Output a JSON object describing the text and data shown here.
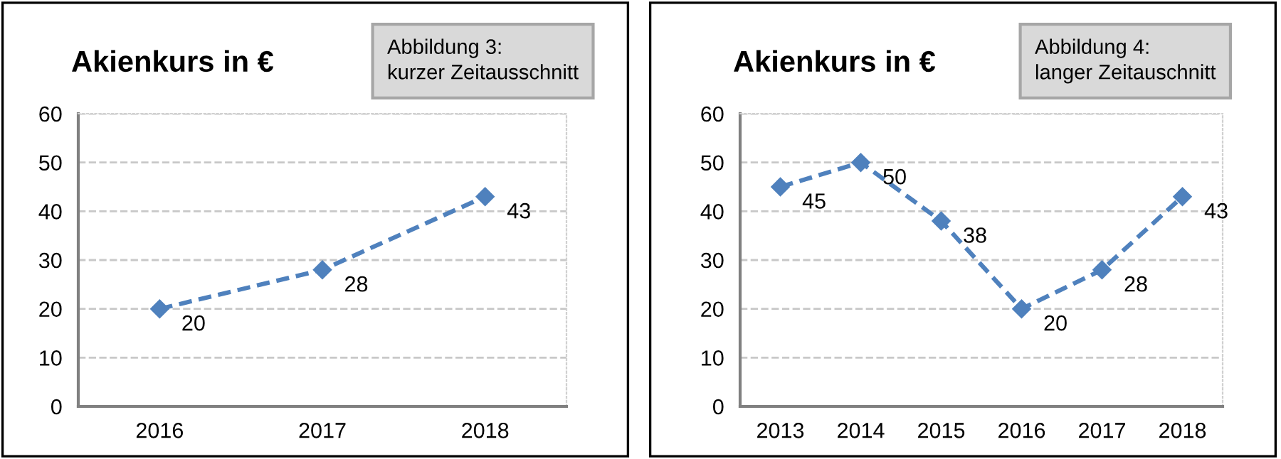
{
  "chart_data": [
    {
      "type": "line",
      "title": "Akienkurs in €",
      "annotations": [
        "Abbildung 3:\nkurzer Zeitausschnitt"
      ],
      "categories": [
        "2016",
        "2017",
        "2018"
      ],
      "series": [
        {
          "color": "#4f81bd",
          "values": [
            20,
            28,
            43
          ]
        }
      ],
      "ylim": [
        0,
        60
      ],
      "yticks": [
        0,
        10,
        20,
        30,
        40,
        50,
        60
      ],
      "grid": "y",
      "marker": "diamond",
      "line_style": "dashed",
      "data_labels": true
    },
    {
      "type": "line",
      "title": "Akienkurs in €",
      "annotations": [
        "Abbildung 4:\nlanger Zeitauschnitt"
      ],
      "categories": [
        "2013",
        "2014",
        "2015",
        "2016",
        "2017",
        "2018"
      ],
      "series": [
        {
          "color": "#4f81bd",
          "values": [
            45,
            50,
            38,
            20,
            28,
            43
          ]
        }
      ],
      "ylim": [
        0,
        60
      ],
      "yticks": [
        0,
        10,
        20,
        30,
        40,
        50,
        60
      ],
      "grid": "y",
      "marker": "diamond",
      "line_style": "dashed",
      "data_labels": true
    }
  ]
}
